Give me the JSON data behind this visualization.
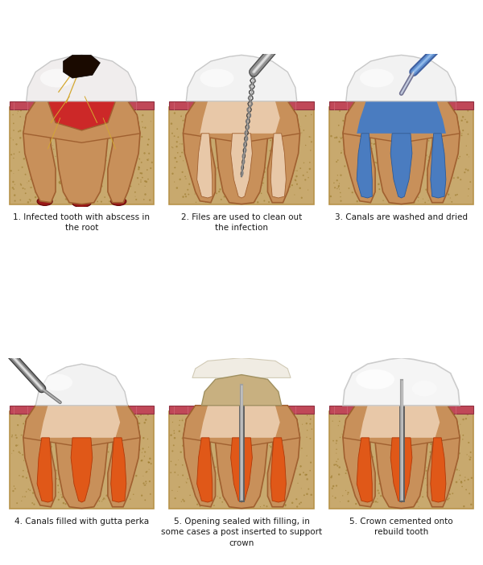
{
  "bg_color": "#ffffff",
  "caption_color": "#1a1a1a",
  "font_size": 7.5,
  "captions": [
    "1. Infected tooth with abscess in\nthe root",
    "2. Files are used to clean out\nthe infection",
    "3. Canals are washed and dried",
    "4. Canals filled with gutta perka",
    "5. Opening sealed with filling, in\nsome cases a post inserted to support\ncrown",
    "5. Crown cemented onto\nrebuild tooth"
  ],
  "bone_color": "#C8A96E",
  "bone_edge": "#B8934A",
  "bone_speckle": "#8B6914",
  "gum_color": "#C04858",
  "gum_stripe": "#D06878",
  "dentin_color": "#C8905A",
  "dentin_edge": "#A06030",
  "pulp_color": "#E8C8A8",
  "crown_color": "#F2F2F2",
  "crown_edge": "#C8C8C8",
  "crown_highlight": "#FFFFFF",
  "infected_color": "#CC2828",
  "infected_edge": "#8B1010",
  "decay_color": "#1A0A00",
  "nerve_color": "#D4A830",
  "canal_fill_color": "#E05818",
  "canal_fill_edge": "#B03808",
  "blue_color": "#4A7CC0",
  "blue_edge": "#2A5A9A",
  "post_color": "#888888",
  "post_light": "#CCCCCC",
  "temp_crown_color": "#C8B080",
  "temp_crown_edge": "#A09060"
}
